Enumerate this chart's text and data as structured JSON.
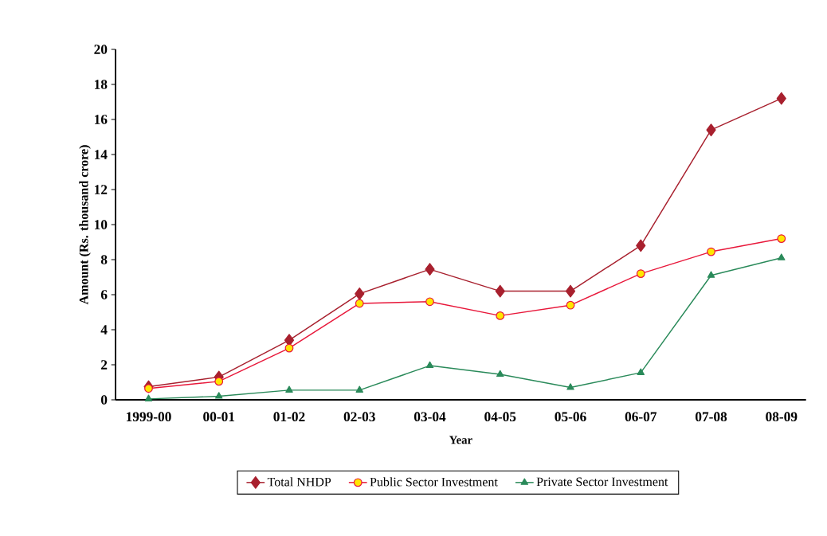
{
  "chart_data": {
    "type": "line",
    "xlabel": "Year",
    "ylabel": "Amount (Rs. thousand crore)",
    "categories": [
      "1999-00",
      "00-01",
      "01-02",
      "02-03",
      "03-04",
      "04-05",
      "05-06",
      "06-07",
      "07-08",
      "08-09"
    ],
    "series": [
      {
        "name": "Total NHDP",
        "color": "#a8202e",
        "marker": "diamond",
        "values": [
          0.75,
          1.3,
          3.4,
          6.05,
          7.45,
          6.2,
          6.2,
          8.8,
          15.4,
          17.2
        ]
      },
      {
        "name": "Public Sector Investment",
        "color": "#e8173a",
        "marker": "circle",
        "values": [
          0.65,
          1.05,
          2.95,
          5.5,
          5.6,
          4.8,
          5.4,
          7.2,
          8.45,
          9.2
        ]
      },
      {
        "name": "Private Sector Investment",
        "color": "#2a8a5a",
        "marker": "triangle",
        "values": [
          0.05,
          0.2,
          0.55,
          0.55,
          1.95,
          1.45,
          0.7,
          1.55,
          7.1,
          8.1
        ]
      }
    ],
    "ylim": [
      0,
      20
    ],
    "yticks": [
      0,
      2,
      4,
      6,
      8,
      10,
      12,
      14,
      16,
      18,
      20
    ],
    "grid": false,
    "legend": "bottom",
    "line_style": "solid"
  }
}
